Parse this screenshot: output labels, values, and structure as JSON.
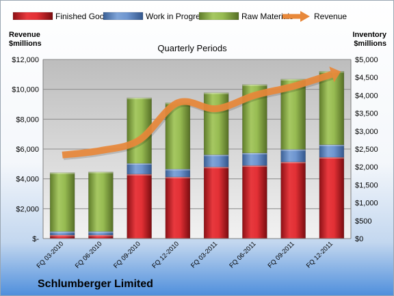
{
  "chart_data": {
    "type": "bar",
    "stacked": true,
    "title": "Quarterly Periods",
    "footer_title": "Schlumberger Limited",
    "left_axis_title": [
      "Revenue",
      "$millions"
    ],
    "right_axis_title": [
      "Inventory",
      "$millions"
    ],
    "categories": [
      "FQ 03-2010",
      "FQ 06-2010",
      "FQ 09-2010",
      "FQ 12-2010",
      "FQ 03-2011",
      "FQ 06-2011",
      "FQ 09-2011",
      "FQ 12-2011"
    ],
    "left_axis": {
      "min": 0,
      "max": 12000,
      "step": 2000,
      "tick_labels": [
        "$-",
        "$2,000",
        "$4,000",
        "$6,000",
        "$8,000",
        "$10,000",
        "$12,000"
      ]
    },
    "right_axis": {
      "min": 0,
      "max": 5000,
      "step": 500,
      "tick_labels": [
        "$0",
        "$500",
        "$1,000",
        "$1,500",
        "$2,000",
        "$2,500",
        "$3,000",
        "$3,500",
        "$4,000",
        "$4,500",
        "$5,000"
      ]
    },
    "legend_position": "top",
    "series": [
      {
        "name": "Finished Goods",
        "kind": "bar",
        "axis": "right",
        "color": "#e8393e",
        "values": [
          100,
          100,
          1800,
          1720,
          2000,
          2040,
          2140,
          2270
        ]
      },
      {
        "name": "Work in Progress",
        "kind": "bar",
        "axis": "right",
        "color": "#5f8bc9",
        "values": [
          100,
          100,
          300,
          220,
          340,
          350,
          350,
          350
        ]
      },
      {
        "name": "Raw Materials",
        "kind": "bar",
        "axis": "right",
        "color": "#9dbf55",
        "values": [
          1640,
          1660,
          1830,
          1850,
          1730,
          1910,
          1960,
          2050
        ]
      },
      {
        "name": "Revenue",
        "kind": "line",
        "axis": "left",
        "color": "#e8883a",
        "values": [
          5600,
          5900,
          6600,
          9100,
          8700,
          9600,
          10200,
          11000
        ]
      }
    ],
    "gridlines": true
  }
}
